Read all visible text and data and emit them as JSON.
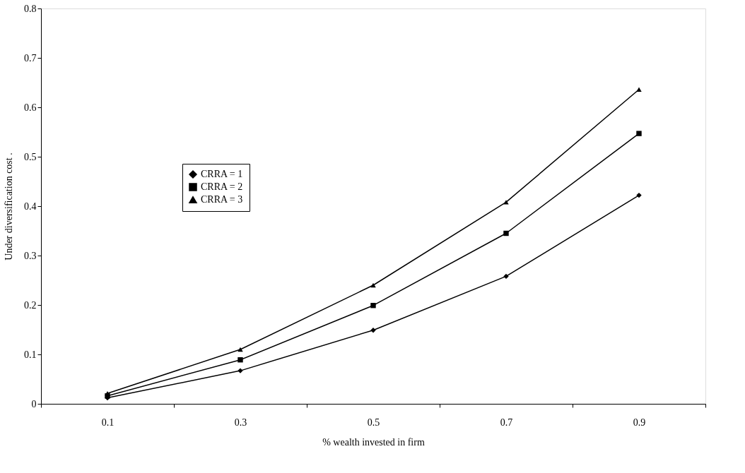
{
  "chart_data": {
    "type": "line",
    "xlabel": "% wealth invested in firm",
    "ylabel": "Under diversification cost .",
    "categories": [
      "0.1",
      "0.3",
      "0.5",
      "0.7",
      "0.9"
    ],
    "series": [
      {
        "name": "CRRA = 1",
        "color": "#000000",
        "marker": "diamond",
        "values": [
          0.012,
          0.067,
          0.149,
          0.258,
          0.422
        ]
      },
      {
        "name": "CRRA = 2",
        "color": "#000000",
        "marker": "square",
        "values": [
          0.016,
          0.089,
          0.199,
          0.345,
          0.547
        ]
      },
      {
        "name": "CRRA = 3",
        "color": "#000000",
        "marker": "triangle",
        "values": [
          0.021,
          0.11,
          0.24,
          0.408,
          0.636
        ]
      }
    ],
    "ylim": [
      0,
      0.8
    ],
    "yticks": [
      0,
      0.1,
      0.2,
      0.3,
      0.4,
      0.5,
      0.6,
      0.7,
      0.8
    ],
    "grid": false,
    "legend": "left",
    "line_style": "solid"
  }
}
